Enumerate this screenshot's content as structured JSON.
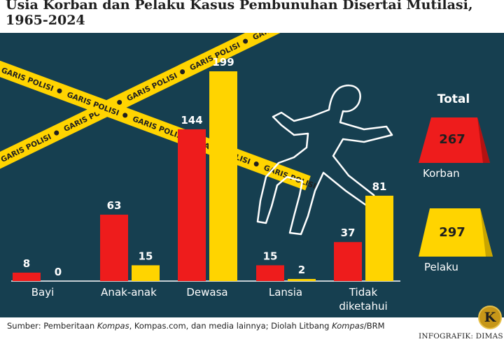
{
  "title": "Usia Korban dan Pelaku Kasus Pembunuhan Disertai Mutilasi, 1965-2024",
  "tape_text": "GARIS POLISI",
  "source": {
    "prefix": "Sumber: Pemberitaan ",
    "kompas_1": "Kompas",
    "middle": ", Kompas.com, dan media lainnya; Diolah Litbang ",
    "kompas_2": "Kompas",
    "suffix": "/BRM"
  },
  "credit": "INFOGRAFIK: DIMAS",
  "logo_letter": "K",
  "colors": {
    "background": "#163f50",
    "korban": "#ee1c1c",
    "pelaku": "#ffd400",
    "text": "#ffffff"
  },
  "totals": {
    "heading": "Total",
    "korban": {
      "label": "Korban",
      "value": "267"
    },
    "pelaku": {
      "label": "Pelaku",
      "value": "297"
    }
  },
  "chart_data": {
    "type": "bar",
    "categories": [
      "Bayi",
      "Anak-anak",
      "Dewasa",
      "Lansia",
      "Tidak diketahui"
    ],
    "series": [
      {
        "name": "Korban",
        "color": "#ee1c1c",
        "values": [
          8,
          63,
          144,
          15,
          37
        ]
      },
      {
        "name": "Pelaku",
        "color": "#ffd400",
        "values": [
          0,
          15,
          199,
          2,
          81
        ]
      }
    ],
    "ylim": [
      0,
      199
    ],
    "grid": false,
    "data_labels": true
  }
}
